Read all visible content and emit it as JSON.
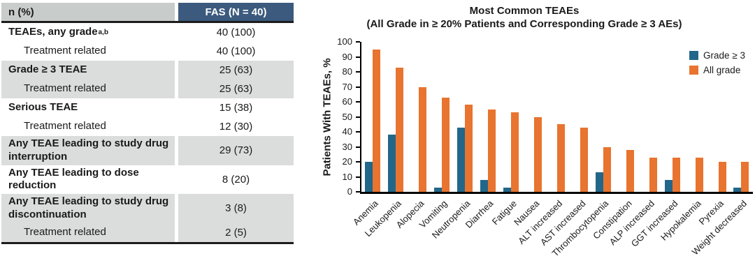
{
  "table": {
    "header": {
      "col1": "n (%)",
      "col2": "FAS (N = 40)"
    },
    "header_bg": "#3B5A7D",
    "header_left_bg": "#C8CCCA",
    "shaded_row_bg": "#DBDDDC",
    "rows": [
      {
        "label": "TEAEs, any grade",
        "sup": "a,b",
        "value": "40 (100)",
        "bold": true,
        "indent": false,
        "shaded": false
      },
      {
        "label": "Treatment related",
        "value": "40 (100)",
        "bold": false,
        "indent": true,
        "shaded": false
      },
      {
        "label": "Grade ≥ 3 TEAE",
        "value": "25 (63)",
        "bold": true,
        "indent": false,
        "shaded": true
      },
      {
        "label": "Treatment related",
        "value": "25 (63)",
        "bold": false,
        "indent": true,
        "shaded": true
      },
      {
        "label": "Serious TEAE",
        "value": "15 (38)",
        "bold": true,
        "indent": false,
        "shaded": false
      },
      {
        "label": "Treatment related",
        "value": "12 (30)",
        "bold": false,
        "indent": true,
        "shaded": false
      },
      {
        "label": "Any TEAE leading to study drug interruption",
        "value": "29 (73)",
        "bold": true,
        "indent": false,
        "shaded": true
      },
      {
        "label": "Any TEAE leading to dose reduction",
        "value": "8 (20)",
        "bold": true,
        "indent": false,
        "shaded": false
      },
      {
        "label": "Any TEAE leading to study drug discontinuation",
        "value": "3 (8)",
        "bold": true,
        "indent": false,
        "shaded": true
      },
      {
        "label": "Treatment related",
        "value": "2 (5)",
        "bold": false,
        "indent": true,
        "shaded": true
      }
    ]
  },
  "chart_data": {
    "type": "bar",
    "title": "Most Common TEAEs (All Grade in ≥ 20% Patients and Corresponding Grade ≥ 3 AEs)",
    "title_lines": [
      "Most Common TEAEs",
      "(All Grade in ≥ 20% Patients and Corresponding Grade ≥ 3 AEs)"
    ],
    "ylabel": "Patients With TEAEs, %",
    "xlabel": "",
    "ylim": [
      0,
      100
    ],
    "ytick_step": 10,
    "grid": false,
    "legend_position": "top-right",
    "categories": [
      "Anemia",
      "Leukopenia",
      "Alopecia",
      "Vomiting",
      "Neutropenia",
      "Diarrhea",
      "Fatigue",
      "Nausea",
      "ALT increased",
      "AST increased",
      "Thrombocytopenia",
      "Constipation",
      "ALP increased",
      "GGT increased",
      "Hypokalemia",
      "Pyrexia",
      "Weight decreased"
    ],
    "series": [
      {
        "name": "Grade ≥ 3",
        "color": "#226789",
        "values": [
          20,
          38,
          0,
          3,
          43,
          8,
          3,
          0,
          0,
          0,
          13,
          0,
          0,
          8,
          0,
          0,
          3
        ]
      },
      {
        "name": "All grade",
        "color": "#E87430",
        "values": [
          95,
          83,
          70,
          63,
          58,
          55,
          53,
          50,
          45,
          43,
          30,
          28,
          23,
          23,
          23,
          20,
          20
        ]
      }
    ]
  }
}
